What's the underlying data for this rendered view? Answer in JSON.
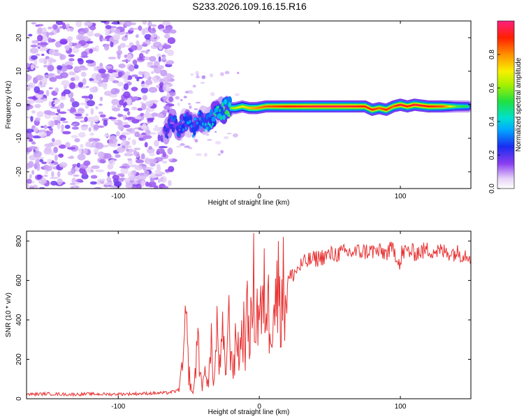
{
  "title": "S233.2026.109.16.15.R16",
  "chart_data": [
    {
      "type": "heatmap",
      "xlabel": "Height of straight line (km)",
      "ylabel": "Frequency (Hz)",
      "xlim": [
        -165,
        150
      ],
      "ylim": [
        -25,
        25
      ],
      "xticks": [
        -100,
        0,
        100
      ],
      "xtick_labels": [
        "-100",
        "0",
        "100"
      ],
      "yticks": [
        -20,
        -10,
        0,
        10,
        20
      ],
      "ytick_labels": [
        "-20",
        "-10",
        "0",
        "10",
        "20"
      ],
      "noise_region_x": [
        -165,
        -67
      ],
      "ridge": {
        "x": [
          -67,
          -62,
          -57,
          -52,
          -47,
          -42,
          -37,
          -32,
          -27,
          -22,
          -17,
          -12,
          -7,
          -2,
          5,
          20,
          40,
          60,
          75,
          80,
          85,
          90,
          95,
          100,
          105,
          110,
          120,
          130,
          140,
          148
        ],
        "freq": [
          -9,
          -5,
          -7,
          -5,
          -7,
          -4,
          -6,
          -3,
          -2,
          -1,
          -1,
          -0.5,
          -1,
          -1,
          -0.5,
          -0.5,
          -0.5,
          -0.5,
          -0.5,
          -1.5,
          -1,
          -1.5,
          -0.5,
          0,
          -0.5,
          0,
          -0.5,
          -0.5,
          -0.5,
          -0.5
        ],
        "amplitude": [
          0.25,
          0.3,
          0.3,
          0.35,
          0.35,
          0.35,
          0.4,
          0.45,
          0.5,
          0.55,
          0.65,
          0.7,
          0.75,
          0.8,
          0.85,
          0.9,
          0.95,
          0.95,
          0.9,
          0.9,
          0.85,
          0.9,
          0.85,
          0.95,
          0.9,
          0.95,
          0.9,
          0.85,
          0.55,
          0.5
        ]
      },
      "colorbar": {
        "label": "Normalized spectral amplitude",
        "range": [
          0,
          1
        ],
        "ticks": [
          0.0,
          0.2,
          0.4,
          0.6,
          0.8
        ],
        "tick_labels": [
          "0.0",
          "0.2",
          "0.4",
          "0.6",
          "0.8"
        ]
      }
    },
    {
      "type": "line",
      "xlabel": "Height of straight line (km)",
      "ylabel": "SNR (10 * v/v)",
      "xlim": [
        -165,
        150
      ],
      "ylim": [
        0,
        850
      ],
      "xticks": [
        -100,
        0,
        100
      ],
      "xtick_labels": [
        "-100",
        "0",
        "100"
      ],
      "yticks": [
        0,
        200,
        400,
        600,
        800
      ],
      "ytick_labels": [
        "0",
        "200",
        "400",
        "600",
        "800"
      ],
      "color": "#e83030",
      "series": [
        {
          "name": "SNR",
          "x": [
            -165,
            -150,
            -135,
            -120,
            -105,
            -90,
            -75,
            -65,
            -58,
            -55,
            -52,
            -50,
            -48,
            -46,
            -44,
            -42,
            -40,
            -38,
            -36,
            -34,
            -32,
            -30,
            -28,
            -26,
            -24,
            -22,
            -20,
            -18,
            -16,
            -14,
            -12,
            -10,
            -8,
            -6,
            -4,
            -2,
            0,
            2,
            4,
            6,
            8,
            10,
            12,
            14,
            16,
            18,
            20,
            25,
            30,
            35,
            40,
            50,
            60,
            70,
            80,
            90,
            95,
            99,
            100,
            101,
            105,
            110,
            120,
            130,
            140,
            150
          ],
          "y": [
            22,
            25,
            22,
            24,
            23,
            25,
            28,
            30,
            40,
            120,
            360,
            140,
            30,
            60,
            340,
            140,
            60,
            150,
            100,
            250,
            80,
            350,
            150,
            300,
            120,
            400,
            250,
            150,
            350,
            200,
            380,
            300,
            420,
            350,
            550,
            400,
            500,
            380,
            550,
            450,
            420,
            530,
            500,
            580,
            560,
            540,
            600,
            640,
            680,
            700,
            710,
            730,
            740,
            745,
            750,
            740,
            760,
            700,
            640,
            740,
            750,
            740,
            755,
            745,
            740,
            730
          ]
        }
      ]
    }
  ]
}
